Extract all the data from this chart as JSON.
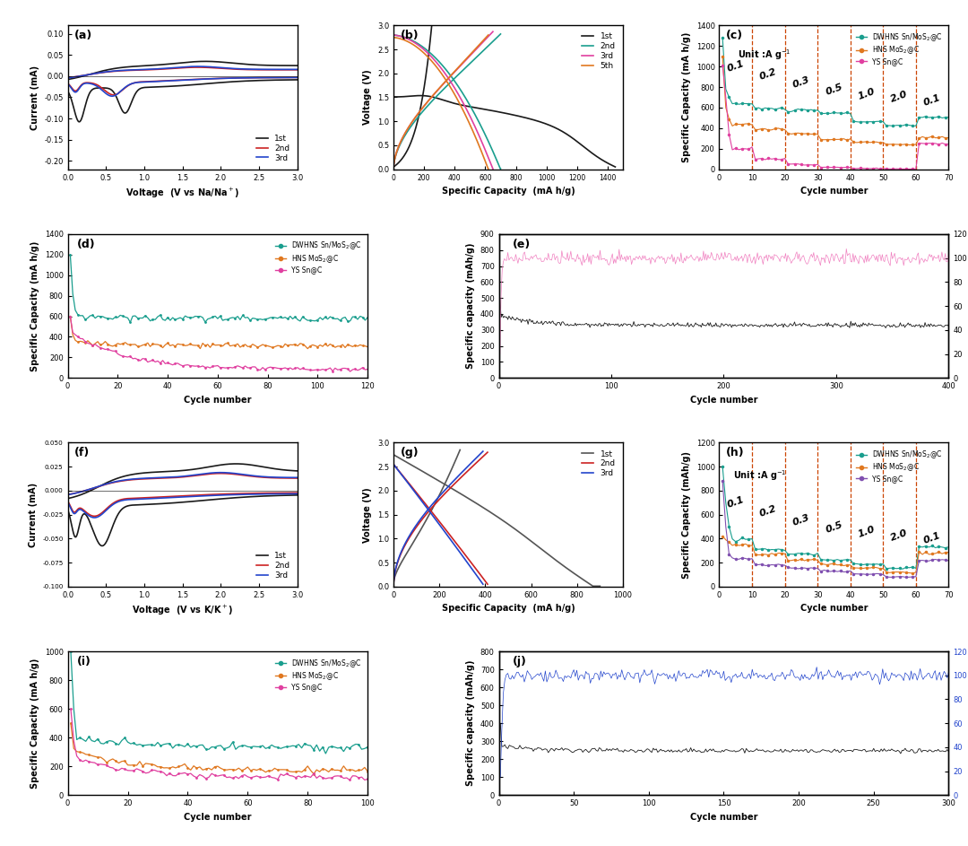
{
  "fig_width": 10.8,
  "fig_height": 9.43,
  "colors": {
    "black": "#1a1a1a",
    "gray": "#555555",
    "red": "#cc2222",
    "blue": "#2244cc",
    "teal": "#1a9e8e",
    "orange": "#e07820",
    "magenta": "#e040a0",
    "pink": "#f080c0",
    "purple": "#8050b0"
  },
  "legend_dwhns": "DWHNS Sn/MoS$_2$@C",
  "legend_hns": "HNS MoS$_2$@C",
  "legend_ys": "YS Sn@C"
}
